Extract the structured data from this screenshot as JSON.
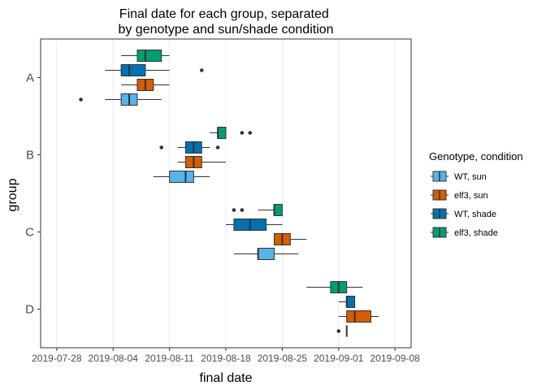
{
  "chart_data": {
    "type": "boxplot",
    "orientation": "horizontal",
    "title": "Final date for each group, separated\nby genotype and sun/shade condition",
    "xlabel": "final date",
    "ylabel": "group",
    "x_ticks": [
      "2019-07-28",
      "2019-08-04",
      "2019-08-11",
      "2019-08-18",
      "2019-08-25",
      "2019-09-01",
      "2019-09-08"
    ],
    "xlim": [
      "2019-07-26",
      "2019-09-10"
    ],
    "categories": [
      "A",
      "B",
      "C",
      "D"
    ],
    "grid": true,
    "legend": {
      "title": "Genotype, condition",
      "position": "right",
      "entries": [
        {
          "label": "WT, sun",
          "color": "#56B4E9"
        },
        {
          "label": "elf3, sun",
          "color": "#D55E00"
        },
        {
          "label": "WT, shade",
          "color": "#0072B2"
        },
        {
          "label": "elf3, shade",
          "color": "#009E73"
        }
      ]
    },
    "series": [
      {
        "name": "WT, sun",
        "color": "#56B4E9",
        "boxes": [
          {
            "group": "A",
            "wmin": "2019-08-03",
            "q1": "2019-08-05",
            "median": "2019-08-06",
            "q3": "2019-08-07",
            "wmax": "2019-08-10",
            "outliers": [
              "2019-07-31"
            ]
          },
          {
            "group": "B",
            "wmin": "2019-08-09",
            "q1": "2019-08-11",
            "median": "2019-08-13",
            "q3": "2019-08-14",
            "wmax": "2019-08-16",
            "outliers": []
          },
          {
            "group": "C",
            "wmin": "2019-08-19",
            "q1": "2019-08-22",
            "median": "2019-08-22",
            "q3": "2019-08-24",
            "wmax": "2019-08-27",
            "outliers": []
          },
          {
            "group": "D",
            "wmin": "2019-09-02",
            "q1": "2019-09-02",
            "median": "2019-09-02",
            "q3": "2019-09-02",
            "wmax": "2019-09-02",
            "outliers": [
              "2019-09-01"
            ]
          }
        ]
      },
      {
        "name": "elf3, sun",
        "color": "#D55E00",
        "boxes": [
          {
            "group": "A",
            "wmin": "2019-08-05",
            "q1": "2019-08-07",
            "median": "2019-08-08",
            "q3": "2019-08-09",
            "wmax": "2019-08-11",
            "outliers": []
          },
          {
            "group": "B",
            "wmin": "2019-08-12",
            "q1": "2019-08-13",
            "median": "2019-08-14",
            "q3": "2019-08-15",
            "wmax": "2019-08-18",
            "outliers": []
          },
          {
            "group": "C",
            "wmin": "2019-08-24",
            "q1": "2019-08-24",
            "median": "2019-08-25",
            "q3": "2019-08-26",
            "wmax": "2019-08-28",
            "outliers": []
          },
          {
            "group": "D",
            "wmin": "2019-09-01",
            "q1": "2019-09-02",
            "median": "2019-09-03",
            "q3": "2019-09-05",
            "wmax": "2019-09-06",
            "outliers": []
          }
        ]
      },
      {
        "name": "WT, shade",
        "color": "#0072B2",
        "boxes": [
          {
            "group": "A",
            "wmin": "2019-08-03",
            "q1": "2019-08-05",
            "median": "2019-08-06",
            "q3": "2019-08-08",
            "wmax": "2019-08-11",
            "outliers": [
              "2019-08-15"
            ]
          },
          {
            "group": "B",
            "wmin": "2019-08-12",
            "q1": "2019-08-13",
            "median": "2019-08-14",
            "q3": "2019-08-15",
            "wmax": "2019-08-16",
            "outliers": [
              "2019-08-10",
              "2019-08-17"
            ]
          },
          {
            "group": "C",
            "wmin": "2019-08-18",
            "q1": "2019-08-19",
            "median": "2019-08-21",
            "q3": "2019-08-23",
            "wmax": "2019-08-25",
            "outliers": []
          },
          {
            "group": "D",
            "wmin": "2019-09-01",
            "q1": "2019-09-02",
            "median": "2019-09-02",
            "q3": "2019-09-03",
            "wmax": "2019-09-03",
            "outliers": []
          }
        ]
      },
      {
        "name": "elf3, shade",
        "color": "#009E73",
        "boxes": [
          {
            "group": "A",
            "wmin": "2019-08-05",
            "q1": "2019-08-07",
            "median": "2019-08-08",
            "q3": "2019-08-10",
            "wmax": "2019-08-11",
            "outliers": []
          },
          {
            "group": "B",
            "wmin": "2019-08-16",
            "q1": "2019-08-17",
            "median": "2019-08-17",
            "q3": "2019-08-18",
            "wmax": "2019-08-18",
            "outliers": [
              "2019-08-20",
              "2019-08-21"
            ]
          },
          {
            "group": "C",
            "wmin": "2019-08-22",
            "q1": "2019-08-24",
            "median": "2019-08-24",
            "q3": "2019-08-25",
            "wmax": "2019-08-25",
            "outliers": [
              "2019-08-19",
              "2019-08-20"
            ]
          },
          {
            "group": "D",
            "wmin": "2019-08-28",
            "q1": "2019-08-31",
            "median": "2019-09-01",
            "q3": "2019-09-02",
            "wmax": "2019-09-04",
            "outliers": []
          }
        ]
      }
    ]
  }
}
